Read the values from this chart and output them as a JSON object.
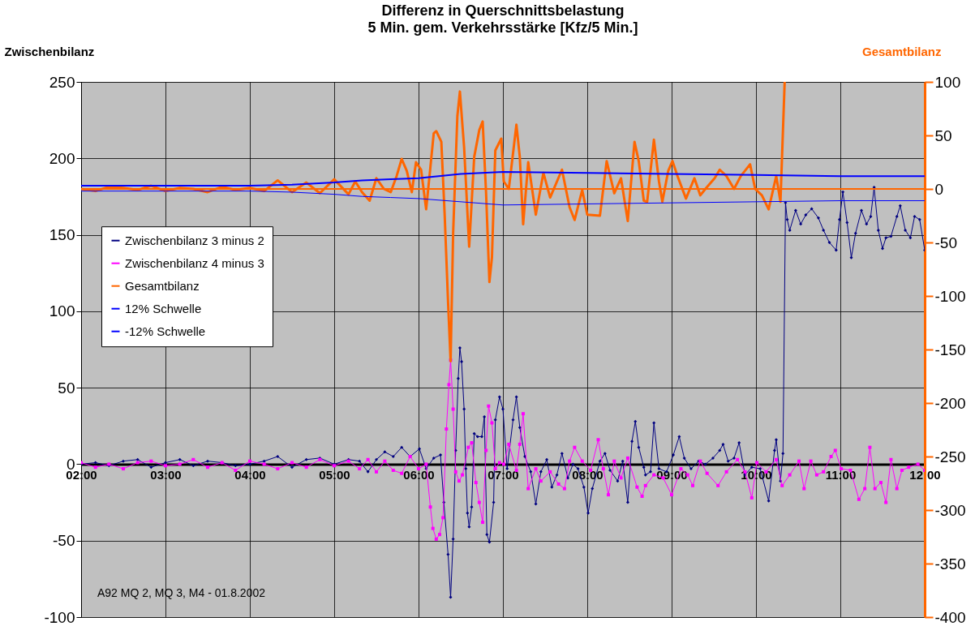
{
  "chart_data": {
    "type": "line",
    "title": "Differenz in Querschnittsbelastung",
    "subtitle": "5 Min. gem. Verkehrsstärke [Kfz/5 Min.]",
    "ylabel": "Zwischenbilanz",
    "y2label": "Gesamtbilanz",
    "xlim": [
      2,
      12
    ],
    "xticks": [
      {
        "value": 2,
        "label": "02:00"
      },
      {
        "value": 3,
        "label": "03:00"
      },
      {
        "value": 4,
        "label": "04:00"
      },
      {
        "value": 5,
        "label": "05:00"
      },
      {
        "value": 6,
        "label": "06:00"
      },
      {
        "value": 7,
        "label": "07:00"
      },
      {
        "value": 8,
        "label": "08:00"
      },
      {
        "value": 9,
        "label": "09:00"
      },
      {
        "value": 10,
        "label": "10:00"
      },
      {
        "value": 11,
        "label": "11:00"
      },
      {
        "value": 12,
        "label": "12:00"
      }
    ],
    "ylim": [
      -100,
      250
    ],
    "yticks": [
      -100,
      -50,
      0,
      50,
      100,
      150,
      200,
      250
    ],
    "y2lim": [
      -400,
      100
    ],
    "y2ticks": [
      -400,
      -350,
      -300,
      -250,
      -200,
      -150,
      -100,
      -50,
      0,
      50,
      100
    ],
    "grid": true,
    "legend": "top left",
    "annotations": [
      "A92 MQ 2, MQ 3, M4 - 01.8.2002"
    ],
    "ref_lines": [
      {
        "axis": "y2",
        "value": 0,
        "label": null,
        "color": "#ff6600"
      }
    ],
    "series": [
      {
        "name": "Zwischenbilanz 3 minus 2",
        "color": "#000080",
        "marker": "diamond",
        "x": [
          2,
          2.17,
          2.33,
          2.5,
          2.67,
          2.83,
          3,
          3.17,
          3.33,
          3.5,
          3.67,
          3.83,
          4,
          4.17,
          4.33,
          4.5,
          4.67,
          4.83,
          5,
          5.17,
          5.3,
          5.4,
          5.5,
          5.6,
          5.7,
          5.8,
          5.9,
          6.01,
          6.09,
          6.18,
          6.26,
          6.3,
          6.35,
          6.38,
          6.41,
          6.44,
          6.47,
          6.49,
          6.51,
          6.54,
          6.56,
          6.58,
          6.6,
          6.63,
          6.66,
          6.7,
          6.75,
          6.78,
          6.81,
          6.84,
          6.89,
          6.91,
          6.96,
          7.0,
          7.05,
          7.12,
          7.16,
          7.2,
          7.26,
          7.33,
          7.39,
          7.45,
          7.52,
          7.58,
          7.64,
          7.7,
          7.77,
          7.83,
          7.89,
          7.96,
          8.01,
          8.06,
          8.15,
          8.21,
          8.27,
          8.36,
          8.42,
          8.48,
          8.53,
          8.57,
          8.61,
          8.67,
          8.69,
          8.75,
          8.79,
          8.85,
          8.94,
          9.02,
          9.09,
          9.15,
          9.23,
          9.32,
          9.4,
          9.49,
          9.57,
          9.61,
          9.67,
          9.74,
          9.8,
          9.87,
          9.95,
          10.05,
          10.15,
          10.22,
          10.24,
          10.29,
          10.32,
          10.35,
          10.37,
          10.4,
          10.47,
          10.53,
          10.59,
          10.66,
          10.74,
          10.8,
          10.87,
          10.95,
          10.99,
          11.03,
          11.08,
          11.13,
          11.18,
          11.25,
          11.31,
          11.36,
          11.4,
          11.45,
          11.5,
          11.54,
          11.6,
          11.67,
          11.71,
          11.77,
          11.83,
          11.88,
          11.94,
          12
        ],
        "values": [
          0,
          1,
          -1,
          2,
          3,
          -2,
          1,
          3,
          -1,
          2,
          1,
          -1,
          0,
          2,
          5,
          -2,
          3,
          4,
          0,
          3,
          2,
          -5,
          3,
          8,
          5,
          11,
          5,
          10,
          -3,
          4,
          6,
          -25,
          -59,
          -87,
          -49,
          9,
          56,
          76,
          67,
          36,
          -3,
          -32,
          -41,
          -28,
          20,
          18,
          18,
          31,
          -46,
          -51,
          -25,
          29,
          44,
          36,
          -3,
          29,
          44,
          24,
          5,
          -5,
          -26,
          -5,
          3,
          -15,
          -7,
          7,
          -9,
          0,
          -3,
          -15,
          -32,
          -16,
          2,
          7,
          -4,
          -11,
          2,
          -25,
          15,
          28,
          11,
          -2,
          -7,
          -5,
          27,
          -3,
          -5,
          6,
          18,
          4,
          -3,
          2,
          0,
          4,
          9,
          13,
          2,
          4,
          14,
          -7,
          -2,
          -3,
          -24,
          9,
          16,
          -11,
          7,
          171,
          160,
          153,
          166,
          157,
          163,
          167,
          161,
          153,
          145,
          140,
          160,
          178,
          158,
          135,
          151,
          166,
          157,
          162,
          181,
          153,
          141,
          148,
          149,
          162,
          169,
          153,
          148,
          162,
          160,
          140
        ]
      },
      {
        "name": "Zwischenbilanz 4 minus 3",
        "color": "#ff00ff",
        "marker": "square",
        "x": [
          2,
          2.17,
          2.33,
          2.5,
          2.67,
          2.83,
          3,
          3.17,
          3.33,
          3.5,
          3.67,
          3.83,
          4,
          4.17,
          4.33,
          4.5,
          4.67,
          4.83,
          5,
          5.17,
          5.3,
          5.4,
          5.5,
          5.6,
          5.7,
          5.8,
          5.9,
          6.0,
          6.09,
          6.14,
          6.17,
          6.21,
          6.25,
          6.29,
          6.33,
          6.36,
          6.38,
          6.41,
          6.44,
          6.48,
          6.52,
          6.59,
          6.63,
          6.68,
          6.72,
          6.76,
          6.8,
          6.83,
          6.87,
          6.91,
          6.96,
          7.01,
          7.07,
          7.16,
          7.2,
          7.24,
          7.3,
          7.39,
          7.45,
          7.56,
          7.66,
          7.73,
          7.79,
          7.85,
          7.94,
          8.04,
          8.13,
          8.19,
          8.25,
          8.32,
          8.4,
          8.48,
          8.59,
          8.65,
          8.69,
          8.79,
          8.9,
          9.0,
          9.11,
          9.19,
          9.25,
          9.34,
          9.42,
          9.55,
          9.65,
          9.78,
          9.87,
          9.95,
          10.01,
          10.12,
          10.24,
          10.31,
          10.4,
          10.51,
          10.57,
          10.65,
          10.72,
          10.8,
          10.89,
          10.94,
          11.01,
          11.12,
          11.22,
          11.29,
          11.35,
          11.41,
          11.48,
          11.54,
          11.6,
          11.67,
          11.73,
          11.81,
          11.92,
          12
        ],
        "values": [
          1,
          -2,
          0,
          -3,
          1,
          2,
          -1,
          0,
          3,
          -2,
          1,
          -4,
          2,
          0,
          -3,
          1,
          -2,
          3,
          -1,
          2,
          -3,
          3,
          -5,
          2,
          -4,
          -6,
          5,
          -3,
          0,
          -28,
          -42,
          -49,
          -46,
          -35,
          23,
          52,
          68,
          36,
          -5,
          -11,
          -7,
          11,
          14,
          -12,
          -25,
          -38,
          9,
          38,
          27,
          -3,
          1,
          0,
          13,
          -4,
          13,
          33,
          -16,
          -3,
          -11,
          -5,
          -13,
          -16,
          2,
          11,
          2,
          -4,
          16,
          -3,
          -20,
          2,
          -9,
          4,
          -15,
          -21,
          -14,
          -7,
          -9,
          -20,
          -3,
          -7,
          -14,
          2,
          -6,
          -14,
          -5,
          3,
          -5,
          -22,
          1,
          -5,
          3,
          -14,
          -7,
          2,
          -16,
          2,
          -7,
          -5,
          5,
          9,
          -3,
          -4,
          -23,
          -16,
          11,
          -16,
          -12,
          -25,
          3,
          -16,
          -4,
          -2,
          0,
          -4
        ]
      },
      {
        "name": "Gesamtbilanz",
        "color": "#ff6600",
        "marker": "none",
        "axis": "y2",
        "x": [
          2,
          2.17,
          2.33,
          2.5,
          2.67,
          2.83,
          3,
          3.17,
          3.33,
          3.5,
          3.67,
          3.83,
          4,
          4.17,
          4.33,
          4.5,
          4.67,
          4.83,
          5,
          5.17,
          5.25,
          5.33,
          5.42,
          5.5,
          5.59,
          5.67,
          5.74,
          5.8,
          5.86,
          5.92,
          5.97,
          6.03,
          6.09,
          6.14,
          6.18,
          6.21,
          6.27,
          6.31,
          6.35,
          6.38,
          6.41,
          6.46,
          6.49,
          6.54,
          6.6,
          6.66,
          6.72,
          6.76,
          6.8,
          6.84,
          6.87,
          6.91,
          6.98,
          7.01,
          7.07,
          7.16,
          7.2,
          7.24,
          7.3,
          7.39,
          7.48,
          7.56,
          7.7,
          7.79,
          7.85,
          7.94,
          8.0,
          8.15,
          8.23,
          8.32,
          8.4,
          8.48,
          8.56,
          8.61,
          8.67,
          8.71,
          8.79,
          8.85,
          8.89,
          8.96,
          9.01,
          9.07,
          9.17,
          9.27,
          9.34,
          9.4,
          9.51,
          9.57,
          9.65,
          9.74,
          9.82,
          9.93,
          9.99,
          10.07,
          10.15,
          10.24,
          10.29,
          10.34
        ],
        "values": [
          0,
          -2,
          2,
          1,
          -1,
          3,
          -2,
          1,
          0,
          -3,
          2,
          -1,
          1,
          -2,
          8,
          -3,
          6,
          -4,
          9,
          -5,
          7,
          -3,
          -11,
          10,
          0,
          -3,
          12,
          28,
          17,
          -3,
          25,
          18,
          -19,
          20,
          52,
          54,
          44,
          -25,
          -106,
          -161,
          -41,
          68,
          91,
          39,
          -54,
          30,
          55,
          63,
          -3,
          -87,
          -64,
          36,
          47,
          7,
          0,
          60,
          30,
          -33,
          25,
          -24,
          15,
          -8,
          18,
          -17,
          -29,
          -1,
          -24,
          -25,
          26,
          -4,
          10,
          -30,
          44,
          26,
          -11,
          -12,
          46,
          7,
          -12,
          17,
          26,
          12,
          -9,
          10,
          -6,
          0,
          10,
          18,
          12,
          0,
          12,
          23,
          0,
          -6,
          -19,
          12,
          -12,
          100
        ]
      },
      {
        "name": "12% Schwelle",
        "color": "#0000ff",
        "marker": "none",
        "axis": "y2",
        "x": [
          2,
          3,
          4,
          4.5,
          5,
          5.33,
          5.67,
          6,
          6.5,
          7,
          8,
          9,
          10,
          11,
          12
        ],
        "values": [
          3,
          3,
          3,
          4,
          6,
          8,
          9,
          10,
          14,
          16,
          15,
          14,
          13,
          12,
          12
        ]
      },
      {
        "name": "-12% Schwelle",
        "color": "#0000ff",
        "marker": "none",
        "axis": "y2",
        "x": [
          2,
          3,
          4,
          4.5,
          5,
          5.33,
          5.67,
          6,
          6.5,
          7,
          8,
          9,
          10,
          11,
          12
        ],
        "values": [
          -2,
          -2,
          -2,
          -3,
          -5,
          -7,
          -8,
          -9,
          -12,
          -15,
          -14,
          -13,
          -12,
          -11,
          -11
        ]
      }
    ]
  }
}
